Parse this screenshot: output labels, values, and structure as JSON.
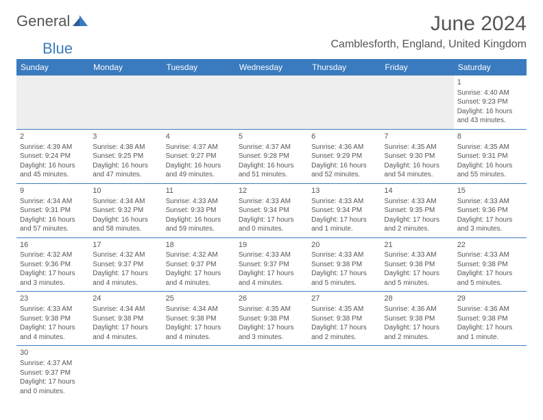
{
  "brand": {
    "part1": "General",
    "part2": "Blue"
  },
  "title": "June 2024",
  "location": "Camblesforth, England, United Kingdom",
  "colors": {
    "header_bg": "#3a7bbf",
    "header_text": "#ffffff",
    "row_border": "#3a7bbf",
    "spacer_bg": "#eeeeee",
    "text": "#555555",
    "background": "#ffffff"
  },
  "fonts": {
    "title_size": 30,
    "location_size": 16,
    "th_size": 12,
    "cell_size": 10
  },
  "day_headers": [
    "Sunday",
    "Monday",
    "Tuesday",
    "Wednesday",
    "Thursday",
    "Friday",
    "Saturday"
  ],
  "weeks": [
    [
      null,
      null,
      null,
      null,
      null,
      null,
      {
        "n": "1",
        "sunrise": "4:40 AM",
        "sunset": "9:23 PM",
        "daylight": "16 hours and 43 minutes."
      }
    ],
    [
      {
        "n": "2",
        "sunrise": "4:39 AM",
        "sunset": "9:24 PM",
        "daylight": "16 hours and 45 minutes."
      },
      {
        "n": "3",
        "sunrise": "4:38 AM",
        "sunset": "9:25 PM",
        "daylight": "16 hours and 47 minutes."
      },
      {
        "n": "4",
        "sunrise": "4:37 AM",
        "sunset": "9:27 PM",
        "daylight": "16 hours and 49 minutes."
      },
      {
        "n": "5",
        "sunrise": "4:37 AM",
        "sunset": "9:28 PM",
        "daylight": "16 hours and 51 minutes."
      },
      {
        "n": "6",
        "sunrise": "4:36 AM",
        "sunset": "9:29 PM",
        "daylight": "16 hours and 52 minutes."
      },
      {
        "n": "7",
        "sunrise": "4:35 AM",
        "sunset": "9:30 PM",
        "daylight": "16 hours and 54 minutes."
      },
      {
        "n": "8",
        "sunrise": "4:35 AM",
        "sunset": "9:31 PM",
        "daylight": "16 hours and 55 minutes."
      }
    ],
    [
      {
        "n": "9",
        "sunrise": "4:34 AM",
        "sunset": "9:31 PM",
        "daylight": "16 hours and 57 minutes."
      },
      {
        "n": "10",
        "sunrise": "4:34 AM",
        "sunset": "9:32 PM",
        "daylight": "16 hours and 58 minutes."
      },
      {
        "n": "11",
        "sunrise": "4:33 AM",
        "sunset": "9:33 PM",
        "daylight": "16 hours and 59 minutes."
      },
      {
        "n": "12",
        "sunrise": "4:33 AM",
        "sunset": "9:34 PM",
        "daylight": "17 hours and 0 minutes."
      },
      {
        "n": "13",
        "sunrise": "4:33 AM",
        "sunset": "9:34 PM",
        "daylight": "17 hours and 1 minute."
      },
      {
        "n": "14",
        "sunrise": "4:33 AM",
        "sunset": "9:35 PM",
        "daylight": "17 hours and 2 minutes."
      },
      {
        "n": "15",
        "sunrise": "4:33 AM",
        "sunset": "9:36 PM",
        "daylight": "17 hours and 3 minutes."
      }
    ],
    [
      {
        "n": "16",
        "sunrise": "4:32 AM",
        "sunset": "9:36 PM",
        "daylight": "17 hours and 3 minutes."
      },
      {
        "n": "17",
        "sunrise": "4:32 AM",
        "sunset": "9:37 PM",
        "daylight": "17 hours and 4 minutes."
      },
      {
        "n": "18",
        "sunrise": "4:32 AM",
        "sunset": "9:37 PM",
        "daylight": "17 hours and 4 minutes."
      },
      {
        "n": "19",
        "sunrise": "4:33 AM",
        "sunset": "9:37 PM",
        "daylight": "17 hours and 4 minutes."
      },
      {
        "n": "20",
        "sunrise": "4:33 AM",
        "sunset": "9:38 PM",
        "daylight": "17 hours and 5 minutes."
      },
      {
        "n": "21",
        "sunrise": "4:33 AM",
        "sunset": "9:38 PM",
        "daylight": "17 hours and 5 minutes."
      },
      {
        "n": "22",
        "sunrise": "4:33 AM",
        "sunset": "9:38 PM",
        "daylight": "17 hours and 5 minutes."
      }
    ],
    [
      {
        "n": "23",
        "sunrise": "4:33 AM",
        "sunset": "9:38 PM",
        "daylight": "17 hours and 4 minutes."
      },
      {
        "n": "24",
        "sunrise": "4:34 AM",
        "sunset": "9:38 PM",
        "daylight": "17 hours and 4 minutes."
      },
      {
        "n": "25",
        "sunrise": "4:34 AM",
        "sunset": "9:38 PM",
        "daylight": "17 hours and 4 minutes."
      },
      {
        "n": "26",
        "sunrise": "4:35 AM",
        "sunset": "9:38 PM",
        "daylight": "17 hours and 3 minutes."
      },
      {
        "n": "27",
        "sunrise": "4:35 AM",
        "sunset": "9:38 PM",
        "daylight": "17 hours and 2 minutes."
      },
      {
        "n": "28",
        "sunrise": "4:36 AM",
        "sunset": "9:38 PM",
        "daylight": "17 hours and 2 minutes."
      },
      {
        "n": "29",
        "sunrise": "4:36 AM",
        "sunset": "9:38 PM",
        "daylight": "17 hours and 1 minute."
      }
    ],
    [
      {
        "n": "30",
        "sunrise": "4:37 AM",
        "sunset": "9:37 PM",
        "daylight": "17 hours and 0 minutes."
      },
      null,
      null,
      null,
      null,
      null,
      null
    ]
  ],
  "labels": {
    "sunrise": "Sunrise: ",
    "sunset": "Sunset: ",
    "daylight": "Daylight: "
  }
}
